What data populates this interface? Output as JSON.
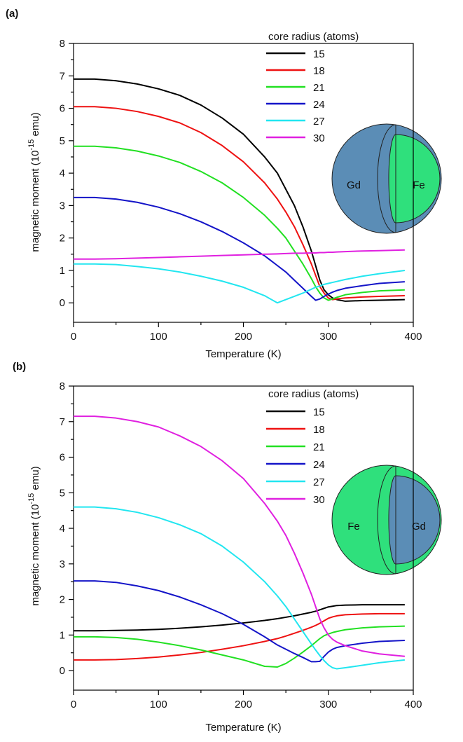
{
  "chart_data": [
    {
      "type": "line",
      "panel_label": "(a)",
      "legend_title": "core radius (atoms)",
      "x_label": "Temperature (K)",
      "y_label": [
        "magnetic moment (10",
        "-15",
        " emu)"
      ],
      "inset": {
        "outer": "Gd",
        "inner": "Fe",
        "outer_color": "#5b8db6",
        "inner_color": "#2fe07c"
      },
      "xlim": [
        0,
        400
      ],
      "ylim": [
        -0.6,
        8
      ],
      "xticks": [
        0,
        100,
        200,
        300,
        400
      ],
      "yticks": [
        0,
        1,
        2,
        3,
        4,
        5,
        6,
        7,
        8
      ],
      "xminorticks": [
        50,
        150,
        250,
        350
      ],
      "yminorticks": [
        0.5,
        1.5,
        2.5,
        3.5,
        4.5,
        5.5,
        6.5,
        7.5
      ],
      "x": [
        0,
        25,
        50,
        75,
        100,
        125,
        150,
        175,
        200,
        225,
        240,
        250,
        260,
        270,
        280,
        285,
        290,
        295,
        300,
        305,
        310,
        320,
        340,
        360,
        390
      ],
      "series": [
        {
          "name": "15",
          "color": "#000000",
          "values": [
            6.9,
            6.9,
            6.85,
            6.75,
            6.6,
            6.4,
            6.1,
            5.7,
            5.2,
            4.5,
            4.0,
            3.5,
            3.0,
            2.35,
            1.6,
            1.15,
            0.7,
            0.4,
            0.25,
            0.15,
            0.1,
            0.05,
            0.07,
            0.08,
            0.1
          ]
        },
        {
          "name": "18",
          "color": "#ee1111",
          "values": [
            6.05,
            6.05,
            6.0,
            5.9,
            5.75,
            5.55,
            5.25,
            4.85,
            4.35,
            3.7,
            3.2,
            2.8,
            2.35,
            1.8,
            1.2,
            0.85,
            0.5,
            0.3,
            0.15,
            0.1,
            0.12,
            0.15,
            0.18,
            0.2,
            0.22
          ]
        },
        {
          "name": "21",
          "color": "#22e022",
          "values": [
            4.83,
            4.83,
            4.78,
            4.68,
            4.53,
            4.33,
            4.05,
            3.7,
            3.25,
            2.7,
            2.3,
            2.0,
            1.6,
            1.2,
            0.75,
            0.5,
            0.3,
            0.15,
            0.08,
            0.12,
            0.17,
            0.25,
            0.32,
            0.37,
            0.4
          ]
        },
        {
          "name": "24",
          "color": "#1414c8",
          "values": [
            3.25,
            3.25,
            3.2,
            3.1,
            2.95,
            2.75,
            2.5,
            2.2,
            1.85,
            1.45,
            1.15,
            0.95,
            0.7,
            0.45,
            0.2,
            0.08,
            0.12,
            0.2,
            0.27,
            0.33,
            0.38,
            0.45,
            0.53,
            0.6,
            0.65
          ]
        },
        {
          "name": "27",
          "color": "#22e6f0",
          "values": [
            1.2,
            1.2,
            1.18,
            1.12,
            1.05,
            0.95,
            0.82,
            0.67,
            0.48,
            0.22,
            0.0,
            0.1,
            0.2,
            0.3,
            0.42,
            0.48,
            0.52,
            0.57,
            0.6,
            0.63,
            0.66,
            0.72,
            0.82,
            0.9,
            1.0
          ]
        },
        {
          "name": "30",
          "color": "#e020e0",
          "values": [
            1.35,
            1.35,
            1.36,
            1.38,
            1.4,
            1.42,
            1.44,
            1.46,
            1.48,
            1.5,
            1.51,
            1.52,
            1.53,
            1.53,
            1.54,
            1.54,
            1.55,
            1.55,
            1.56,
            1.56,
            1.57,
            1.58,
            1.6,
            1.61,
            1.63
          ]
        }
      ]
    },
    {
      "type": "line",
      "panel_label": "(b)",
      "legend_title": "core radius (atoms)",
      "x_label": "Temperature (K)",
      "y_label": [
        "magnetic moment (10",
        "-15",
        " emu)"
      ],
      "inset": {
        "outer": "Fe",
        "inner": "Gd",
        "outer_color": "#2fe07c",
        "inner_color": "#5b8db6"
      },
      "xlim": [
        0,
        400
      ],
      "ylim": [
        -0.55,
        8
      ],
      "xticks": [
        0,
        100,
        200,
        300,
        400
      ],
      "yticks": [
        0,
        1,
        2,
        3,
        4,
        5,
        6,
        7,
        8
      ],
      "xminorticks": [
        50,
        150,
        250,
        350
      ],
      "yminorticks": [
        0.5,
        1.5,
        2.5,
        3.5,
        4.5,
        5.5,
        6.5,
        7.5
      ],
      "x": [
        0,
        25,
        50,
        75,
        100,
        125,
        150,
        175,
        200,
        225,
        240,
        250,
        260,
        270,
        280,
        285,
        290,
        295,
        300,
        305,
        310,
        320,
        340,
        360,
        390
      ],
      "series": [
        {
          "name": "15",
          "color": "#000000",
          "values": [
            1.12,
            1.12,
            1.13,
            1.14,
            1.16,
            1.19,
            1.23,
            1.28,
            1.34,
            1.41,
            1.46,
            1.5,
            1.54,
            1.59,
            1.64,
            1.67,
            1.71,
            1.75,
            1.79,
            1.81,
            1.83,
            1.84,
            1.85,
            1.85,
            1.85
          ]
        },
        {
          "name": "18",
          "color": "#ee1111",
          "values": [
            0.3,
            0.3,
            0.31,
            0.34,
            0.38,
            0.44,
            0.51,
            0.6,
            0.7,
            0.82,
            0.9,
            0.97,
            1.05,
            1.13,
            1.22,
            1.27,
            1.33,
            1.4,
            1.47,
            1.51,
            1.54,
            1.57,
            1.59,
            1.6,
            1.6
          ]
        },
        {
          "name": "21",
          "color": "#22e022",
          "values": [
            0.95,
            0.95,
            0.93,
            0.88,
            0.8,
            0.7,
            0.58,
            0.44,
            0.3,
            0.12,
            0.1,
            0.2,
            0.35,
            0.52,
            0.7,
            0.8,
            0.9,
            0.98,
            1.03,
            1.07,
            1.1,
            1.15,
            1.2,
            1.23,
            1.25
          ]
        },
        {
          "name": "24",
          "color": "#1414c8",
          "values": [
            2.52,
            2.52,
            2.48,
            2.38,
            2.25,
            2.07,
            1.85,
            1.6,
            1.3,
            0.95,
            0.72,
            0.6,
            0.48,
            0.37,
            0.25,
            0.25,
            0.26,
            0.4,
            0.52,
            0.6,
            0.65,
            0.7,
            0.77,
            0.82,
            0.85
          ]
        },
        {
          "name": "27",
          "color": "#22e6f0",
          "values": [
            4.6,
            4.6,
            4.55,
            4.45,
            4.3,
            4.1,
            3.85,
            3.5,
            3.05,
            2.5,
            2.1,
            1.8,
            1.45,
            1.1,
            0.75,
            0.58,
            0.42,
            0.28,
            0.16,
            0.08,
            0.05,
            0.08,
            0.15,
            0.22,
            0.3
          ]
        },
        {
          "name": "30",
          "color": "#e020e0",
          "values": [
            7.15,
            7.15,
            7.1,
            7.0,
            6.85,
            6.6,
            6.3,
            5.9,
            5.4,
            4.7,
            4.2,
            3.8,
            3.3,
            2.75,
            2.15,
            1.8,
            1.45,
            1.2,
            1.0,
            0.88,
            0.8,
            0.7,
            0.55,
            0.47,
            0.4
          ]
        }
      ]
    }
  ]
}
